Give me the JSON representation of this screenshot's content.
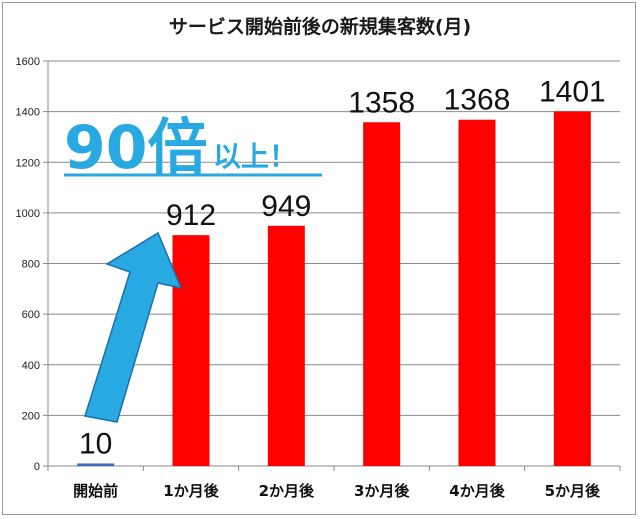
{
  "chart_data": {
    "type": "bar",
    "title": "サービス開始前後の新規集客数(月)",
    "categories": [
      "開始前",
      "1か月後",
      "2か月後",
      "3か月後",
      "4か月後",
      "5か月後"
    ],
    "values": [
      10,
      912,
      949,
      1358,
      1368,
      1401
    ],
    "data_labels": [
      "10",
      "912",
      "949",
      "1358",
      "1368",
      "1401"
    ],
    "ylim": [
      0,
      1600
    ],
    "yticks": [
      0,
      200,
      400,
      600,
      800,
      1000,
      1200,
      1400,
      1600
    ],
    "grid": true,
    "colors": [
      "#3b6bbf",
      "#ff0000",
      "#ff0000",
      "#ff0000",
      "#ff0000",
      "#ff0000"
    ],
    "annotation": {
      "big": "90倍",
      "small": "以上！",
      "color": "#29a9e1",
      "arrow_color": "#29a9e1"
    }
  }
}
